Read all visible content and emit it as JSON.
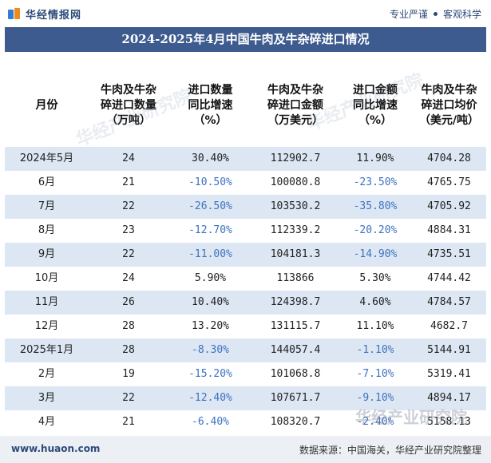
{
  "brand": {
    "name": "华经情报网",
    "slogan_left": "专业严谨",
    "slogan_right": "客观科学"
  },
  "title": "2024-2025年4月中国牛肉及牛杂碎进口情况",
  "columns": [
    [
      "月份"
    ],
    [
      "牛肉及牛杂",
      "碎进口数量",
      "（万吨）"
    ],
    [
      "进口数量",
      "同比增速",
      "（%）"
    ],
    [
      "牛肉及牛杂",
      "碎进口金额",
      "（万美元）"
    ],
    [
      "进口金额",
      "同比增速",
      "（%）"
    ],
    [
      "牛肉及牛杂",
      "碎进口均价",
      "（美元/吨）"
    ]
  ],
  "rows": [
    {
      "month": "2024年5月",
      "qty": "24",
      "qty_yoy": "30.40%",
      "amount": "112902.7",
      "amount_yoy": "11.90%",
      "price": "4704.28"
    },
    {
      "month": "6月",
      "qty": "21",
      "qty_yoy": "-10.50%",
      "amount": "100080.8",
      "amount_yoy": "-23.50%",
      "price": "4765.75"
    },
    {
      "month": "7月",
      "qty": "22",
      "qty_yoy": "-26.50%",
      "amount": "103530.2",
      "amount_yoy": "-35.80%",
      "price": "4705.92"
    },
    {
      "month": "8月",
      "qty": "23",
      "qty_yoy": "-12.70%",
      "amount": "112339.2",
      "amount_yoy": "-20.20%",
      "price": "4884.31"
    },
    {
      "month": "9月",
      "qty": "22",
      "qty_yoy": "-11.00%",
      "amount": "104181.3",
      "amount_yoy": "-14.90%",
      "price": "4735.51"
    },
    {
      "month": "10月",
      "qty": "24",
      "qty_yoy": "5.90%",
      "amount": "113866",
      "amount_yoy": "5.30%",
      "price": "4744.42"
    },
    {
      "month": "11月",
      "qty": "26",
      "qty_yoy": "10.40%",
      "amount": "124398.7",
      "amount_yoy": "4.60%",
      "price": "4784.57"
    },
    {
      "month": "12月",
      "qty": "28",
      "qty_yoy": "13.20%",
      "amount": "131115.7",
      "amount_yoy": "11.10%",
      "price": "4682.7"
    },
    {
      "month": "2025年1月",
      "qty": "28",
      "qty_yoy": "-8.30%",
      "amount": "144057.4",
      "amount_yoy": "-1.10%",
      "price": "5144.91"
    },
    {
      "month": "2月",
      "qty": "19",
      "qty_yoy": "-15.20%",
      "amount": "101068.8",
      "amount_yoy": "-7.10%",
      "price": "5319.41"
    },
    {
      "month": "3月",
      "qty": "22",
      "qty_yoy": "-12.40%",
      "amount": "107671.7",
      "amount_yoy": "-9.10%",
      "price": "4894.17"
    },
    {
      "month": "4月",
      "qty": "21",
      "qty_yoy": "-6.40%",
      "amount": "108320.7",
      "amount_yoy": "-2.40%",
      "price": "5158.13"
    }
  ],
  "watermark": "华经产业研究院",
  "footer": {
    "url": "www.huaon.com",
    "source": "数据来源：中国海关，华经产业研究院整理"
  },
  "colors": {
    "title_bg": "#3d5b8e",
    "stripe": "#dde7f3",
    "negative": "#3d72c2",
    "footer_bg": "#eceff3"
  }
}
